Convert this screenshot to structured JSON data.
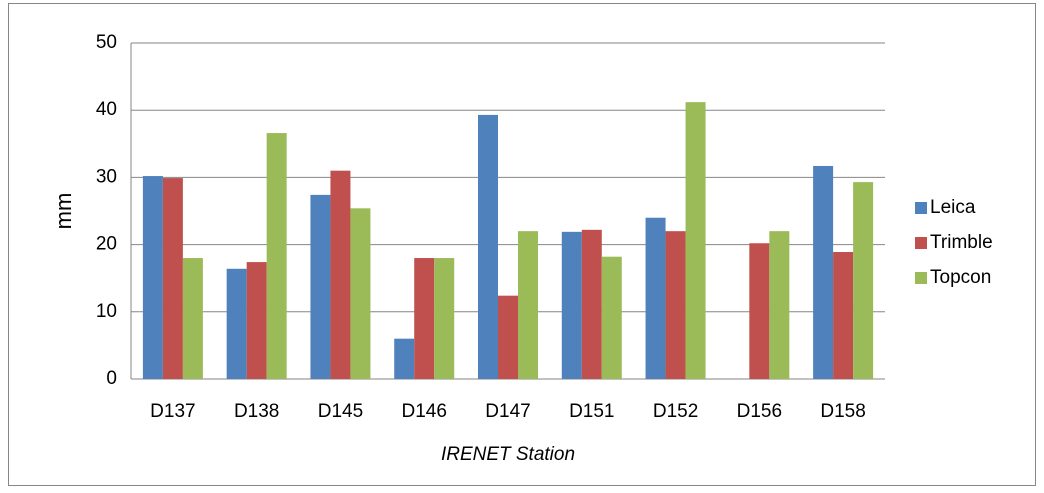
{
  "chart_data": {
    "type": "bar",
    "y_label": "mm",
    "x_label": "IRENET Station",
    "categories": [
      "D137",
      "D138",
      "D145",
      "D146",
      "D147",
      "D151",
      "D152",
      "D156",
      "D158"
    ],
    "series": [
      {
        "name": "Leica",
        "color": "#4f81bd",
        "values": [
          30.2,
          16.4,
          27.4,
          6.0,
          39.3,
          21.9,
          24.0,
          null,
          31.7
        ]
      },
      {
        "name": "Trimble",
        "color": "#c0504d",
        "values": [
          29.9,
          17.4,
          31.0,
          18.0,
          12.4,
          22.2,
          22.0,
          20.2,
          18.9
        ]
      },
      {
        "name": "Topcon",
        "color": "#9bbb59",
        "values": [
          18.0,
          36.6,
          25.4,
          18.0,
          22.0,
          18.2,
          41.2,
          22.0,
          29.3
        ]
      }
    ],
    "ylim": [
      0,
      50
    ],
    "yticks": [
      0,
      10,
      20,
      30,
      40,
      50
    ],
    "grid": true
  }
}
